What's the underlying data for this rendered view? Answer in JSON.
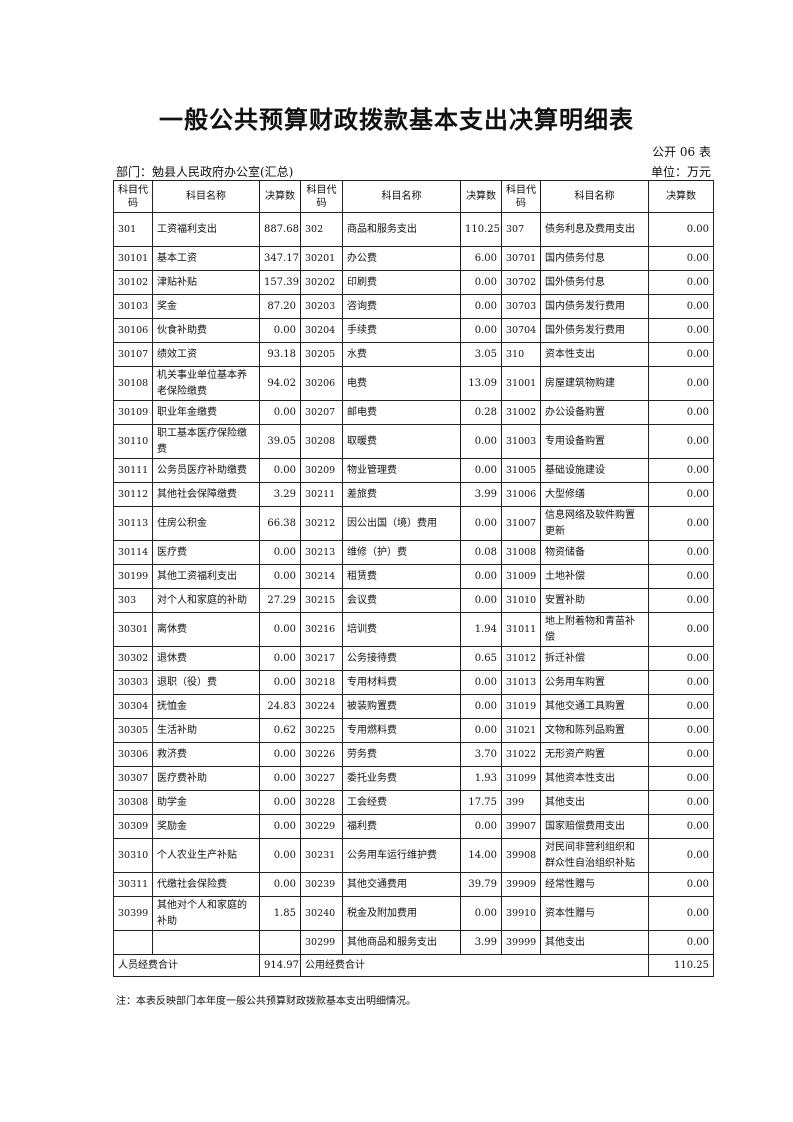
{
  "title": "一般公共预算财政拨款基本支出决算明细表",
  "form_no": "公开 06 表",
  "department": "部门：勉县人民政府办公室(汇总)",
  "unit": "单位：万元",
  "headers": [
    "科目代码",
    "科目名称",
    "决算数",
    "科目代码",
    "科目名称",
    "决算数",
    "科目代码",
    "科目名称",
    "决算数"
  ],
  "rows": [
    [
      "301",
      "工资福利支出",
      "887.68",
      "302",
      "商品和服务支出",
      "110.25",
      "307",
      "债务利息及费用支出",
      "0.00"
    ],
    [
      "30101",
      "基本工资",
      "347.17",
      "30201",
      "办公费",
      "6.00",
      "30701",
      "国内债务付息",
      "0.00"
    ],
    [
      "30102",
      "津贴补贴",
      "157.39",
      "30202",
      "印刷费",
      "0.00",
      "30702",
      "国外债务付息",
      "0.00"
    ],
    [
      "30103",
      "奖金",
      "87.20",
      "30203",
      "咨询费",
      "0.00",
      "30703",
      "国内债务发行费用",
      "0.00"
    ],
    [
      "30106",
      "伙食补助费",
      "0.00",
      "30204",
      "手续费",
      "0.00",
      "30704",
      "国外债务发行费用",
      "0.00"
    ],
    [
      "30107",
      "绩效工资",
      "93.18",
      "30205",
      "水费",
      "3.05",
      "310",
      "资本性支出",
      "0.00"
    ],
    [
      "30108",
      "机关事业单位基本养老保险缴费",
      "94.02",
      "30206",
      "电费",
      "13.09",
      "31001",
      "房屋建筑物购建",
      "0.00"
    ],
    [
      "30109",
      "职业年金缴费",
      "0.00",
      "30207",
      "邮电费",
      "0.28",
      "31002",
      "办公设备购置",
      "0.00"
    ],
    [
      "30110",
      "职工基本医疗保险缴费",
      "39.05",
      "30208",
      "取暖费",
      "0.00",
      "31003",
      "专用设备购置",
      "0.00"
    ],
    [
      "30111",
      "公务员医疗补助缴费",
      "0.00",
      "30209",
      "物业管理费",
      "0.00",
      "31005",
      "基础设施建设",
      "0.00"
    ],
    [
      "30112",
      "其他社会保障缴费",
      "3.29",
      "30211",
      "差旅费",
      "3.99",
      "31006",
      "大型修缮",
      "0.00"
    ],
    [
      "30113",
      "住房公积金",
      "66.38",
      "30212",
      "因公出国（境）费用",
      "0.00",
      "31007",
      "信息网络及软件购置更新",
      "0.00"
    ],
    [
      "30114",
      "医疗费",
      "0.00",
      "30213",
      "维修（护）费",
      "0.08",
      "31008",
      "物资储备",
      "0.00"
    ],
    [
      "30199",
      "其他工资福利支出",
      "0.00",
      "30214",
      "租赁费",
      "0.00",
      "31009",
      "土地补偿",
      "0.00"
    ],
    [
      "303",
      "对个人和家庭的补助",
      "27.29",
      "30215",
      "会议费",
      "0.00",
      "31010",
      "安置补助",
      "0.00"
    ],
    [
      "30301",
      "离休费",
      "0.00",
      "30216",
      "培训费",
      "1.94",
      "31011",
      "地上附着物和青苗补偿",
      "0.00"
    ],
    [
      "30302",
      "退休费",
      "0.00",
      "30217",
      "公务接待费",
      "0.65",
      "31012",
      "拆迁补偿",
      "0.00"
    ],
    [
      "30303",
      "退职（役）费",
      "0.00",
      "30218",
      "专用材料费",
      "0.00",
      "31013",
      "公务用车购置",
      "0.00"
    ],
    [
      "30304",
      "抚恤金",
      "24.83",
      "30224",
      "被装购置费",
      "0.00",
      "31019",
      "其他交通工具购置",
      "0.00"
    ],
    [
      "30305",
      "生活补助",
      "0.62",
      "30225",
      "专用燃料费",
      "0.00",
      "31021",
      "文物和陈列品购置",
      "0.00"
    ],
    [
      "30306",
      "救济费",
      "0.00",
      "30226",
      "劳务费",
      "3.70",
      "31022",
      "无形资产购置",
      "0.00"
    ],
    [
      "30307",
      "医疗费补助",
      "0.00",
      "30227",
      "委托业务费",
      "1.93",
      "31099",
      "其他资本性支出",
      "0.00"
    ],
    [
      "30308",
      "助学金",
      "0.00",
      "30228",
      "工会经费",
      "17.75",
      "399",
      "其他支出",
      "0.00"
    ],
    [
      "30309",
      "奖励金",
      "0.00",
      "30229",
      "福利费",
      "0.00",
      "39907",
      "国家赔偿费用支出",
      "0.00"
    ],
    [
      "30310",
      "个人农业生产补贴",
      "0.00",
      "30231",
      "公务用车运行维护费",
      "14.00",
      "39908",
      "对民间非营利组织和群众性自治组织补贴",
      "0.00"
    ],
    [
      "30311",
      "代缴社会保险费",
      "0.00",
      "30239",
      "其他交通费用",
      "39.79",
      "39909",
      "经常性赠与",
      "0.00"
    ],
    [
      "30399",
      "其他对个人和家庭的补助",
      "1.85",
      "30240",
      "税金及附加费用",
      "0.00",
      "39910",
      "资本性赠与",
      "0.00"
    ],
    [
      "",
      "",
      "",
      "30299",
      "其他商品和服务支出",
      "3.99",
      "39999",
      "其他支出",
      "0.00"
    ]
  ],
  "totals": {
    "personnel_label": "人员经费合计",
    "personnel_value": "914.97",
    "public_label": "公用经费合计",
    "public_value": "110.25"
  },
  "note": "注：本表反映部门本年度一般公共预算财政拨款基本支出明细情况。"
}
